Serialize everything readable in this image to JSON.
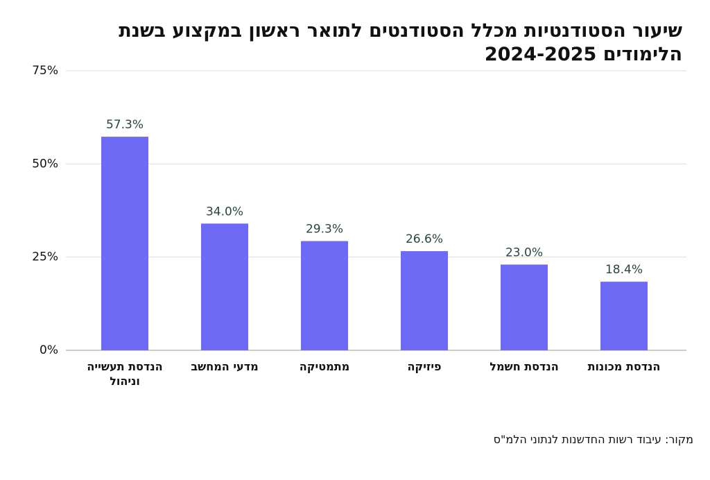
{
  "chart_data": {
    "type": "bar",
    "title": "שיעור הסטודנטיות מכלל הסטודנטים לתואר ראשון במקצוע בשנת הלימודים 2024-2025",
    "categories": [
      "הנדסת תעשייה וניהול",
      "מדעי המחשב",
      "מתמטיקה",
      "פיזיקה",
      "הנדסת חשמל",
      "הנדסת מכונות"
    ],
    "values": [
      57.3,
      34.0,
      29.3,
      26.6,
      23.0,
      18.4
    ],
    "value_labels": [
      "57.3%",
      "34.0%",
      "29.3%",
      "26.6%",
      "23.0%",
      "18.4%"
    ],
    "color": "#6e6af5",
    "ylim": [
      0,
      75
    ],
    "yticks": [
      {
        "value": 0,
        "label": "0%"
      },
      {
        "value": 25,
        "label": "25%"
      },
      {
        "value": 50,
        "label": "50%"
      },
      {
        "value": 75,
        "label": "75%"
      }
    ],
    "grid": true,
    "source": "מקור: עיבוד רשות החדשנות לנתוני הלמ\"ס"
  }
}
